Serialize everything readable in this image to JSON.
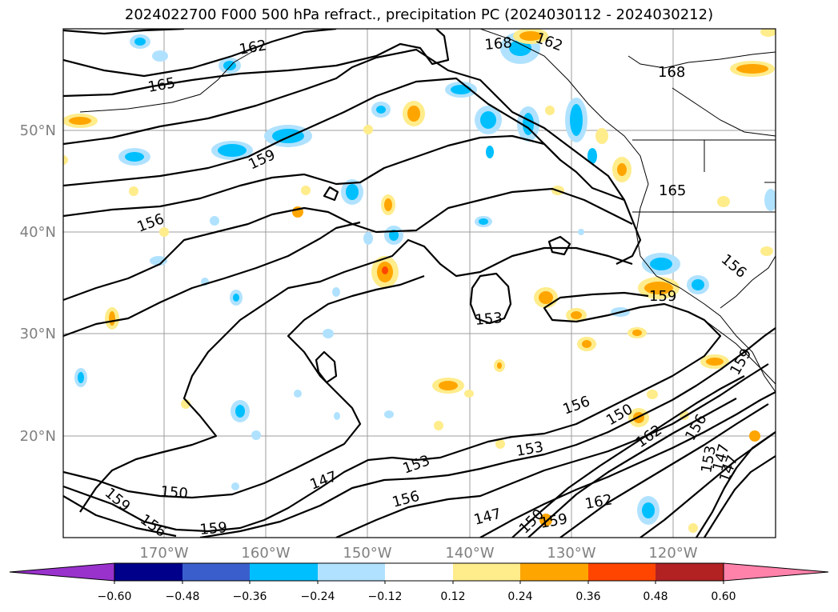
{
  "title": "2024022700 F000 500 hPa refract., precipitation PC (2024030112 - 2024030212)",
  "map": {
    "lon_labels": [
      "170°W",
      "160°W",
      "150°W",
      "140°W",
      "130°W",
      "120°W"
    ],
    "lat_labels": [
      "50°N",
      "40°N",
      "30°N",
      "20°N"
    ],
    "contour_labels": [
      {
        "text": "162"
      },
      {
        "text": "165"
      },
      {
        "text": "162"
      },
      {
        "text": "168"
      },
      {
        "text": "168"
      },
      {
        "text": "159"
      },
      {
        "text": "156"
      },
      {
        "text": "165"
      },
      {
        "text": "156"
      },
      {
        "text": "159"
      },
      {
        "text": "153"
      },
      {
        "text": "156"
      },
      {
        "text": "150"
      },
      {
        "text": "162"
      },
      {
        "text": "156"
      },
      {
        "text": "153"
      },
      {
        "text": "153"
      },
      {
        "text": "150"
      },
      {
        "text": "147"
      },
      {
        "text": "147"
      },
      {
        "text": "150"
      },
      {
        "text": "159"
      },
      {
        "text": "156"
      },
      {
        "text": "159"
      },
      {
        "text": "156"
      },
      {
        "text": "153"
      },
      {
        "text": "147"
      },
      {
        "text": "159"
      },
      {
        "text": "162"
      },
      {
        "text": "147"
      },
      {
        "text": "159"
      }
    ]
  },
  "colorbar": {
    "tick_labels": [
      "−0.60",
      "−0.48",
      "−0.36",
      "−0.24",
      "−0.12",
      "0.12",
      "0.24",
      "0.36",
      "0.48",
      "0.60"
    ],
    "colors": [
      "#9932cc",
      "#00008b",
      "#3a5fcd",
      "#00bfff",
      "#b0e2ff",
      "#ffffff",
      "#ffec8b",
      "#ffa500",
      "#ff4500",
      "#b22222",
      "#ff82ab"
    ]
  }
}
